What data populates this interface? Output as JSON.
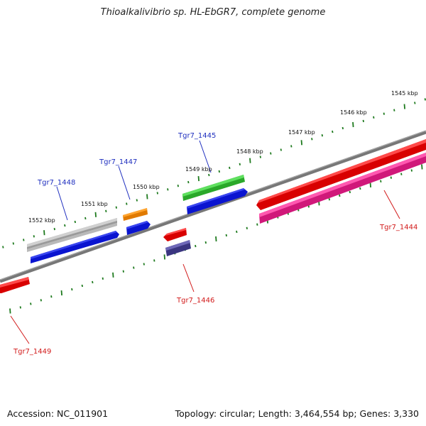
{
  "title": "Thioalkalivibrio sp. HL-EbGR7, complete genome",
  "footer": {
    "accession": "Accession: NC_011901",
    "topology": "Topology: circular; Length: 3,464,554 bp; Genes: 3,330"
  },
  "colors": {
    "backbone": "#7a7a7a",
    "tick": "#1e7a1e",
    "label_forward": "#1f2fbf",
    "label_reverse": "#d21a1a"
  },
  "kbp_labels": [
    "1545 kbp",
    "1546 kbp",
    "1547 kbp",
    "1548 kbp",
    "1549 kbp",
    "1550 kbp",
    "1551 kbp",
    "1552 kbp"
  ],
  "gene_labels": [
    {
      "name": "Tgr7_1444",
      "strand": "reverse"
    },
    {
      "name": "Tgr7_1445",
      "strand": "forward"
    },
    {
      "name": "Tgr7_1446",
      "strand": "reverse"
    },
    {
      "name": "Tgr7_1447",
      "strand": "forward"
    },
    {
      "name": "Tgr7_1448",
      "strand": "forward"
    },
    {
      "name": "Tgr7_1449",
      "strand": "reverse"
    }
  ]
}
